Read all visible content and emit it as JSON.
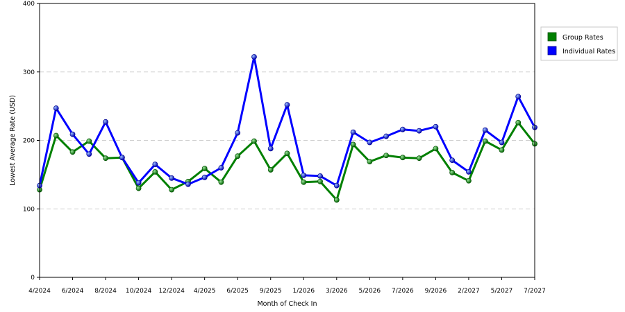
{
  "chart_data": {
    "type": "line",
    "title": "",
    "xlabel": "Month of Check In",
    "ylabel": "Lowest Average Rate (USD)",
    "ylim": [
      0,
      400
    ],
    "yticks": [
      0,
      100,
      200,
      300,
      400
    ],
    "grid": "horizontal dashed",
    "legend_position": "right",
    "x_tick_labels": [
      "4/2024",
      "6/2024",
      "8/2024",
      "10/2024",
      "12/2024",
      "4/2025",
      "6/2025",
      "9/2025",
      "1/2026",
      "3/2026",
      "5/2026",
      "7/2026",
      "9/2026",
      "2/2027",
      "5/2027",
      "7/2027"
    ],
    "series": [
      {
        "name": "Group Rates",
        "color": "#008000",
        "values": [
          128,
          207,
          183,
          199,
          174,
          175,
          130,
          154,
          128,
          140,
          159,
          139,
          177,
          199,
          157,
          181,
          139,
          140,
          113,
          194,
          169,
          178,
          175,
          174,
          188,
          153,
          141,
          199,
          186,
          226,
          195
        ]
      },
      {
        "name": "Individual Rates",
        "color": "#0000ff",
        "values": [
          134,
          247,
          209,
          180,
          227,
          175,
          138,
          165,
          145,
          136,
          146,
          160,
          211,
          322,
          188,
          252,
          149,
          148,
          134,
          212,
          197,
          206,
          216,
          214,
          220,
          171,
          154,
          215,
          197,
          264,
          219
        ]
      }
    ]
  }
}
